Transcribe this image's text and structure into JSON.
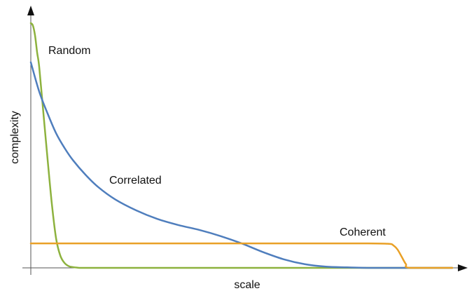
{
  "chart_data": {
    "type": "line",
    "title": "",
    "xlabel": "scale",
    "ylabel": "complexity",
    "xlim": [
      0,
      1
    ],
    "ylim": [
      0,
      1
    ],
    "grid": false,
    "legend": "none",
    "series": [
      {
        "name": "Random",
        "color": "#8DB23E",
        "x": [
          0,
          0.005,
          0.01,
          0.015,
          0.02,
          0.03,
          0.04,
          0.05,
          0.06,
          0.07,
          0.08,
          0.09,
          0.1,
          0.11,
          0.12,
          0.14,
          0.2,
          0.4,
          0.6,
          0.8,
          1.0
        ],
        "y": [
          1.0,
          0.99,
          0.95,
          0.88,
          0.82,
          0.63,
          0.44,
          0.26,
          0.12,
          0.05,
          0.02,
          0.007,
          0.003,
          0.001,
          0.0,
          0.0,
          0.0,
          0.0,
          0.0,
          0.0,
          0.0
        ]
      },
      {
        "name": "Correlated",
        "color": "#4F7EBD",
        "x": [
          0,
          0.02,
          0.04,
          0.06,
          0.08,
          0.1,
          0.13,
          0.16,
          0.2,
          0.25,
          0.3,
          0.35,
          0.4,
          0.45,
          0.5,
          0.55,
          0.6,
          0.65,
          0.7,
          0.75,
          0.8,
          0.85,
          0.9,
          1.0
        ],
        "y": [
          0.84,
          0.72,
          0.63,
          0.55,
          0.49,
          0.44,
          0.38,
          0.33,
          0.28,
          0.235,
          0.2,
          0.175,
          0.155,
          0.13,
          0.1,
          0.065,
          0.035,
          0.015,
          0.005,
          0.002,
          0.0,
          0.0,
          0.0,
          0.0
        ]
      },
      {
        "name": "Coherent",
        "color": "#E9A026",
        "x": [
          0,
          0.2,
          0.4,
          0.6,
          0.8,
          0.85,
          0.86,
          0.87,
          0.88,
          0.89,
          0.9,
          1.0
        ],
        "y": [
          0.1,
          0.1,
          0.1,
          0.1,
          0.1,
          0.098,
          0.092,
          0.075,
          0.045,
          0.015,
          0.0,
          0.0
        ]
      }
    ],
    "annotations": [
      "Random",
      "Correlated",
      "Coherent"
    ]
  }
}
